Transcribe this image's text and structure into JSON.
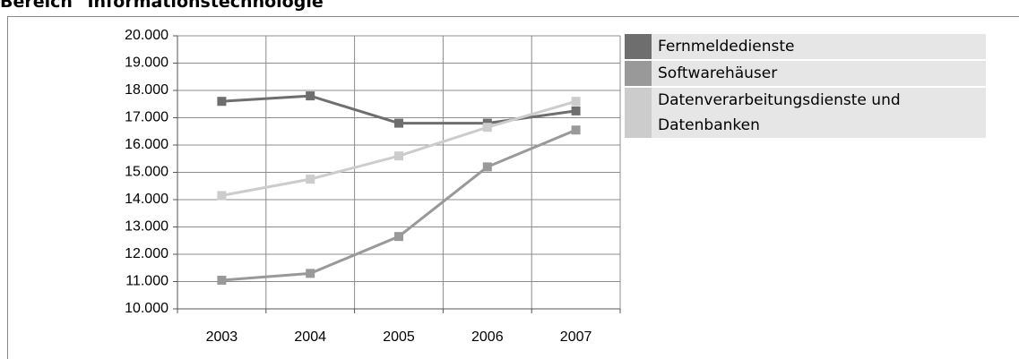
{
  "chart_data": {
    "type": "line",
    "title": "Bereich \"Informationstechnologie\"",
    "categories": [
      "2003",
      "2004",
      "2005",
      "2006",
      "2007"
    ],
    "series": [
      {
        "name": "Fernmeldedienste",
        "color": "#6e6e6e",
        "values": [
          17600,
          17800,
          16800,
          16800,
          17250
        ]
      },
      {
        "name": "Softwarehäuser",
        "color": "#999999",
        "values": [
          11050,
          11300,
          12650,
          15200,
          16550
        ]
      },
      {
        "name": "Datenverarbeitungsdienste und Datenbanken",
        "color": "#cccccc",
        "values": [
          14150,
          14750,
          15600,
          16650,
          17600
        ]
      }
    ],
    "ylim": [
      10000,
      20000
    ],
    "yticks": [
      {
        "value": 10000,
        "label": "10.000"
      },
      {
        "value": 11000,
        "label": "11.000"
      },
      {
        "value": 12000,
        "label": "12.000"
      },
      {
        "value": 13000,
        "label": "13.000"
      },
      {
        "value": 14000,
        "label": "14.000"
      },
      {
        "value": 15000,
        "label": "15.000"
      },
      {
        "value": 16000,
        "label": "16.000"
      },
      {
        "value": 17000,
        "label": "17.000"
      },
      {
        "value": 18000,
        "label": "18.000"
      },
      {
        "value": 19000,
        "label": "19.000"
      },
      {
        "value": 20000,
        "label": "20.000"
      }
    ],
    "grid": true,
    "legend": "right"
  }
}
